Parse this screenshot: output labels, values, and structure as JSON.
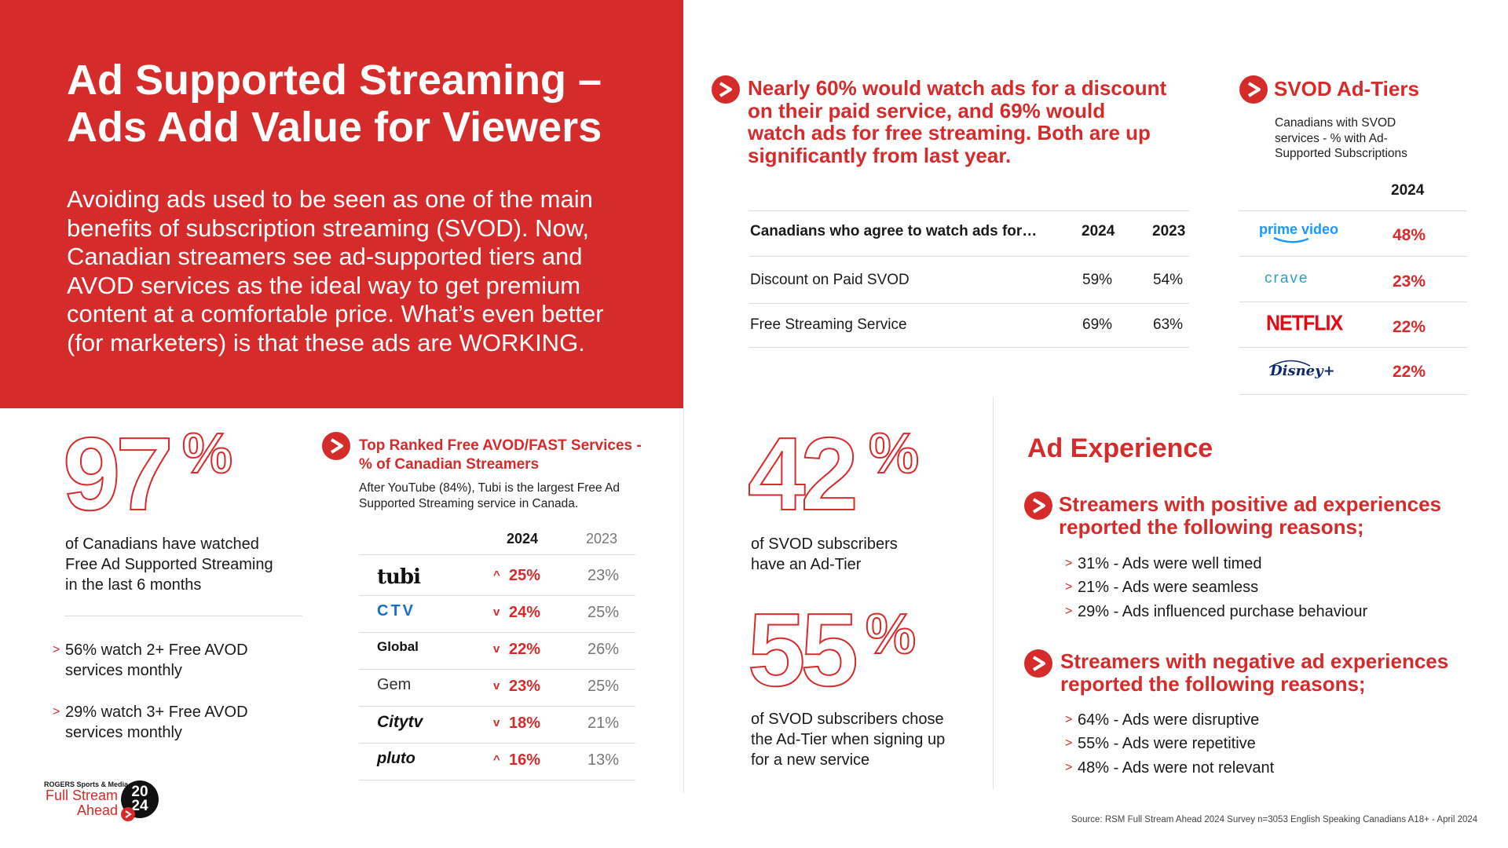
{
  "header": {
    "title_line1": "Ad Supported Streaming –",
    "title_line2": "Ads Add Value for Viewers",
    "intro_lines": [
      "Avoiding ads used to be seen as one of the main",
      "benefits of subscription streaming (SVOD).  Now,",
      "Canadian streamers see ad-supported tiers and",
      "AVOD services as the ideal way to get premium",
      "content at a comfortable price.  What’s even better",
      "(for marketers) is that these ads are WORKING."
    ]
  },
  "watch_ads": {
    "headline_lines": [
      "Nearly 60% would watch ads for a discount",
      "on their paid service, and 69% would",
      "watch ads for free streaming.  Both are up",
      "significantly from last year."
    ],
    "table": {
      "header": "Canadians who agree to watch ads for…",
      "col_2024": "2024",
      "col_2023": "2023",
      "rows": [
        {
          "label": "Discount on Paid SVOD",
          "v2024": "59%",
          "v2023": "54%"
        },
        {
          "label": "Free Streaming Service",
          "v2024": "69%",
          "v2023": "63%"
        }
      ]
    }
  },
  "svod_tiers": {
    "title": "SVOD Ad-Tiers",
    "subtitle_lines": [
      "Canadians with SVOD",
      "services - % with Ad-",
      "Supported Subscriptions"
    ],
    "year": "2024",
    "rows": [
      {
        "logo": "prime video",
        "value": "48%"
      },
      {
        "logo": "crave",
        "value": "23%"
      },
      {
        "logo": "NETFLIX",
        "value": "22%"
      },
      {
        "logo": "Disney+",
        "value": "22%"
      }
    ]
  },
  "stat97": {
    "number": "97",
    "symbol": "%",
    "desc_lines": [
      "of Canadians have watched",
      "Free Ad Supported Streaming",
      "in the last 6 months"
    ],
    "bullets": [
      [
        "56% watch 2+ Free AVOD",
        "services monthly"
      ],
      [
        "29% watch 3+ Free AVOD",
        "services monthly"
      ]
    ]
  },
  "avod": {
    "title_line1": "Top Ranked Free AVOD/FAST Services -",
    "title_line2": "% of Canadian Streamers",
    "subtitle_lines": [
      "After YouTube (84%), Tubi is the largest Free Ad",
      "Supported Streaming service in Canada."
    ],
    "col_2024": "2024",
    "col_2023": "2023",
    "rows": [
      {
        "logo": "tubi",
        "dir": "^",
        "v2024": "25%",
        "v2023": "23%"
      },
      {
        "logo": "CTV",
        "dir": "v",
        "v2024": "24%",
        "v2023": "25%"
      },
      {
        "logo": "Global",
        "dir": "v",
        "v2024": "22%",
        "v2023": "26%"
      },
      {
        "logo": "Gem",
        "dir": "v",
        "v2024": "23%",
        "v2023": "25%"
      },
      {
        "logo": "Citytv",
        "dir": "v",
        "v2024": "18%",
        "v2023": "21%"
      },
      {
        "logo": "pluto",
        "dir": "^",
        "v2024": "16%",
        "v2023": "13%"
      }
    ]
  },
  "stat42": {
    "number": "42",
    "symbol": "%",
    "desc_lines": [
      "of SVOD subscribers",
      "have an Ad-Tier"
    ]
  },
  "stat55": {
    "number": "55",
    "symbol": "%",
    "desc_lines": [
      "of SVOD subscribers chose",
      "the Ad-Tier when signing up",
      "for a new service"
    ]
  },
  "ad_experience": {
    "title": "Ad Experience",
    "positive_lines": [
      "Streamers with positive ad experiences",
      "reported the following reasons;"
    ],
    "positive_items": [
      "31% - Ads were well timed",
      "21% - Ads were seamless",
      "29% - Ads influenced purchase behaviour"
    ],
    "negative_lines": [
      "Streamers with negative ad experiences",
      "reported the following reasons;"
    ],
    "negative_items": [
      "64% - Ads were disruptive",
      "55% - Ads were repetitive",
      "48% - Ads were not relevant"
    ]
  },
  "footer": {
    "brand_small": "ROGERS Sports & Media",
    "brand_line1": "Full Stream",
    "brand_line2": "Ahead",
    "year_top": "20",
    "year_bottom": "24",
    "source": "Source: RSM Full Stream Ahead 2024 Survey n=3053 English Speaking Canadians A18+ - April 2024"
  },
  "colors": {
    "accent": "#d62b2b"
  }
}
